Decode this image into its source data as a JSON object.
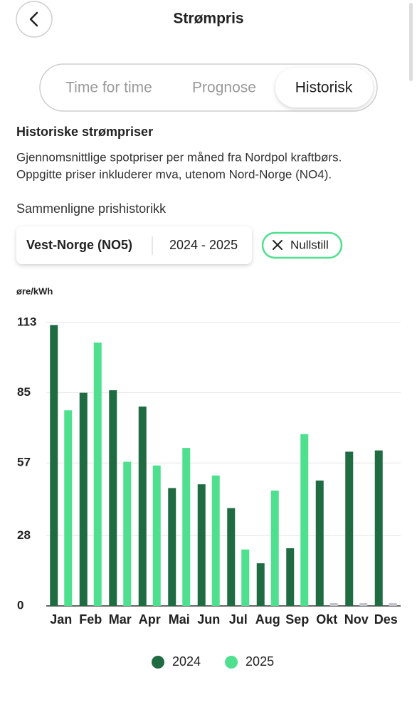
{
  "header": {
    "title": "Strømpris"
  },
  "tabs": [
    "Time for time",
    "Prognose",
    "Historisk"
  ],
  "section": {
    "title": "Historiske strømpriser",
    "description": [
      "Gjennomsnittlige spotpriser per måned fra Nordpol kraftbørs.",
      "Oppgitte priser inkluderer mva, utenom Nord-Norge (NO4)."
    ],
    "compare_label": "Sammenligne prishistorikk"
  },
  "filter": {
    "region": "Vest-Norge (NO5)",
    "period": "2024 - 2025",
    "reset": "Nullstill"
  },
  "chart_data": {
    "type": "bar",
    "y_label": "øre/kWh",
    "categories": [
      "Jan",
      "Feb",
      "Mar",
      "Apr",
      "Mai",
      "Jun",
      "Jul",
      "Aug",
      "Sep",
      "Okt",
      "Nov",
      "Des"
    ],
    "series": [
      {
        "name": "2024",
        "color": "#1f6b42",
        "values": [
          112,
          85,
          86,
          79.5,
          47,
          48.5,
          39,
          17,
          23,
          50,
          61.5,
          62
        ]
      },
      {
        "name": "2025",
        "color": "#4ee08f",
        "values": [
          78,
          105,
          57.5,
          56,
          63,
          52,
          22.5,
          46,
          68.5,
          null,
          null,
          null
        ]
      }
    ],
    "ylim": [
      0,
      113
    ],
    "yticks": [
      0,
      28,
      57,
      85,
      113
    ],
    "grid": true,
    "legend": "bottom"
  }
}
